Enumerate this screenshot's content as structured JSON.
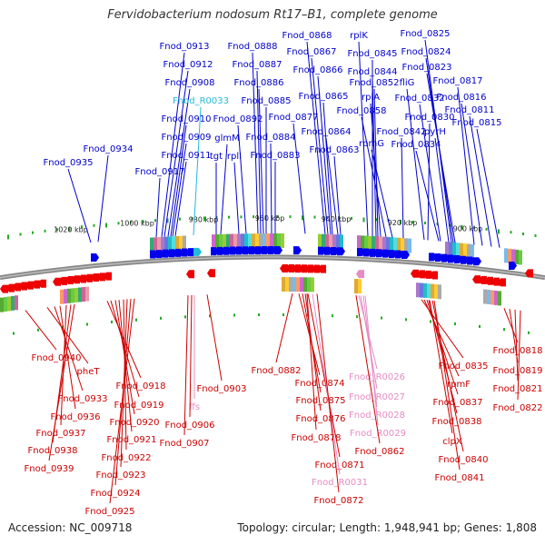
{
  "title": "Fervidobacterium nodosum Rt17–B1, complete genome",
  "footer": {
    "accession": "Accession: NC_009718",
    "summary": "Topology: circular; Length: 1,948,941 bp; Genes: 1,808"
  },
  "colors": {
    "forward_gene": "#0000ee",
    "reverse_gene": "#ee0000",
    "forward_label": "#0000cc",
    "reverse_label": "#cc0000",
    "forward_rna_label": "#22bbdd",
    "reverse_rna_label": "#e68cc4",
    "backbone": "#888888",
    "tick": "#22aa22"
  },
  "ruler_labels": [
    "1020 kbp",
    "1000 kbp",
    "980 kbp",
    "960 kbp",
    "940 kbp",
    "920 kbp",
    "900 kbp"
  ],
  "forward_labels": [
    "Fnod_0913",
    "Fnod_0912",
    "Fnod_0908",
    "Fnod_R0033",
    "Fnod_0910",
    "Fnod_0909",
    "Fnod_0911",
    "Fnod_0917",
    "Fnod_0934",
    "Fnod_0935",
    "Fnod_0888",
    "Fnod_0887",
    "Fnod_0886",
    "Fnod_0885",
    "Fnod_0892",
    "glmM",
    "tgt",
    "rplI",
    "Fnod_0884",
    "Fnod_0883",
    "Fnod_0868",
    "Fnod_0867",
    "Fnod_0866",
    "Fnod_0865",
    "Fnod_0877",
    "Fnod_0864",
    "Fnod_0863",
    "rplK",
    "Fnod_0845",
    "Fnod_0844",
    "Fnod_0852",
    "rplA",
    "Fnod_0858",
    "fliG",
    "Fnod_0842",
    "rpmG",
    "Fnod_0825",
    "Fnod_0824",
    "Fnod_0823",
    "Fnod_0817",
    "Fnod_0832",
    "Fnod_0816",
    "Fnod_0811",
    "Fnod_0830",
    "Fnod_0815",
    "pyrH",
    "Fnod_0834"
  ],
  "reverse_labels": [
    "Fnod_0940",
    "pheT",
    "Fnod_0933",
    "Fnod_0936",
    "Fnod_0937",
    "Fnod_0938",
    "Fnod_0939",
    "Fnod_0918",
    "Fnod_0919",
    "Fnod_0920",
    "Fnod_0921",
    "Fnod_0922",
    "Fnod_0923",
    "Fnod_0924",
    "Fnod_0925",
    "ffs",
    "Fnod_0906",
    "Fnod_0907",
    "Fnod_0903",
    "Fnod_0882",
    "Fnod_0874",
    "Fnod_0875",
    "Fnod_0876",
    "Fnod_0878",
    "Fnod_0871",
    "Fnod_R0031",
    "Fnod_0872",
    "Fnod_R0026",
    "Fnod_R0027",
    "Fnod_R0028",
    "Fnod_R0029",
    "Fnod_0862",
    "Fnod_0835",
    "rpmF",
    "Fnod_0837",
    "Fnod_0838",
    "clpX",
    "Fnod_0840",
    "Fnod_0841",
    "Fnod_0818",
    "Fnod_0819",
    "Fnod_0821",
    "Fnod_0822"
  ]
}
